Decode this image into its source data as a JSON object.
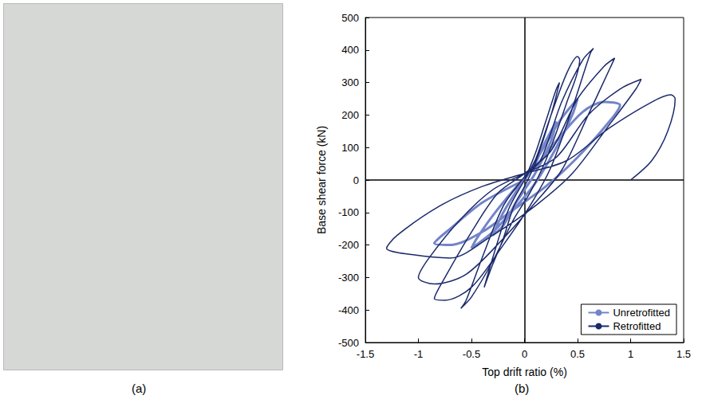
{
  "photo_panel": {
    "caption": "(a)"
  },
  "chart_data": {
    "type": "line",
    "caption": "(b)",
    "x_label": "Top drift ratio (%)",
    "y_label": "Base shear force (kN)",
    "xlim": [
      -1.5,
      1.5
    ],
    "xticks": [
      -1.5,
      -1,
      -0.5,
      0,
      0.5,
      1,
      1.5
    ],
    "ylim": [
      -500,
      500
    ],
    "yticks": [
      -500,
      -400,
      -300,
      -200,
      -100,
      0,
      100,
      200,
      300,
      400,
      500
    ],
    "grid": false,
    "legend": "lower right",
    "series": [
      {
        "name": "Unretrofitted",
        "color": "#7384c9",
        "x": [
          0,
          0.1,
          0.2,
          0.3,
          0.25,
          0.1,
          0,
          -0.1,
          -0.2,
          -0.3,
          -0.2,
          -0.05,
          0.05,
          0.2,
          0.35,
          0.5,
          0.45,
          0.3,
          0.1,
          -0.1,
          -0.3,
          -0.5,
          -0.45,
          -0.3,
          -0.1,
          0.1,
          0.3,
          0.55,
          0.75,
          0.9,
          0.8,
          0.5,
          0.2,
          -0.1,
          -0.4,
          -0.7,
          -0.85,
          -0.7,
          -0.4,
          0
        ],
        "values": [
          0,
          50,
          120,
          180,
          120,
          20,
          -30,
          -80,
          -140,
          -170,
          -100,
          -20,
          30,
          110,
          190,
          250,
          200,
          100,
          -10,
          -90,
          -160,
          -210,
          -180,
          -110,
          -30,
          40,
          120,
          210,
          240,
          230,
          180,
          70,
          -20,
          -90,
          -160,
          -200,
          -195,
          -150,
          -70,
          0
        ]
      },
      {
        "name": "Retrofitted",
        "color": "#1b2a6b",
        "x": [
          0,
          0.1,
          0.2,
          0.3,
          0.33,
          0.25,
          0.1,
          0,
          -0.1,
          -0.2,
          -0.3,
          -0.38,
          -0.3,
          -0.15,
          0,
          0.1,
          0.25,
          0.4,
          0.5,
          0.52,
          0.4,
          0.2,
          0.05,
          -0.1,
          -0.3,
          -0.5,
          -0.6,
          -0.55,
          -0.4,
          -0.2,
          0,
          0.15,
          0.35,
          0.55,
          0.65,
          0.62,
          0.45,
          0.25,
          0.05,
          -0.2,
          -0.5,
          -0.75,
          -0.85,
          -0.75,
          -0.5,
          -0.25,
          0,
          0.25,
          0.5,
          0.75,
          0.85,
          0.8,
          0.6,
          0.35,
          0.1,
          -0.2,
          -0.55,
          -0.85,
          -1.0,
          -0.9,
          -0.6,
          -0.3,
          0,
          0.3,
          0.6,
          0.9,
          1.1,
          1.05,
          0.8,
          0.45,
          0.1,
          -0.3,
          -0.7,
          -1.05,
          -1.3,
          -1.2,
          -0.8,
          -0.4,
          0,
          0.4,
          0.8,
          1.2,
          1.38,
          1.42,
          1.35,
          1.2,
          1.0
        ],
        "values": [
          0,
          80,
          180,
          280,
          300,
          200,
          50,
          -20,
          -80,
          -180,
          -260,
          -330,
          -240,
          -90,
          0,
          60,
          200,
          330,
          380,
          370,
          240,
          60,
          -40,
          -120,
          -250,
          -360,
          -395,
          -370,
          -240,
          -80,
          10,
          60,
          240,
          370,
          405,
          390,
          220,
          40,
          -80,
          -200,
          -330,
          -370,
          -365,
          -300,
          -160,
          -40,
          20,
          90,
          250,
          350,
          375,
          340,
          200,
          30,
          -70,
          -180,
          -290,
          -320,
          -300,
          -240,
          -120,
          -30,
          20,
          70,
          200,
          280,
          310,
          280,
          170,
          20,
          -80,
          -170,
          -240,
          -230,
          -210,
          -170,
          -80,
          -20,
          20,
          60,
          160,
          240,
          262,
          250,
          150,
          60,
          0
        ]
      }
    ]
  }
}
